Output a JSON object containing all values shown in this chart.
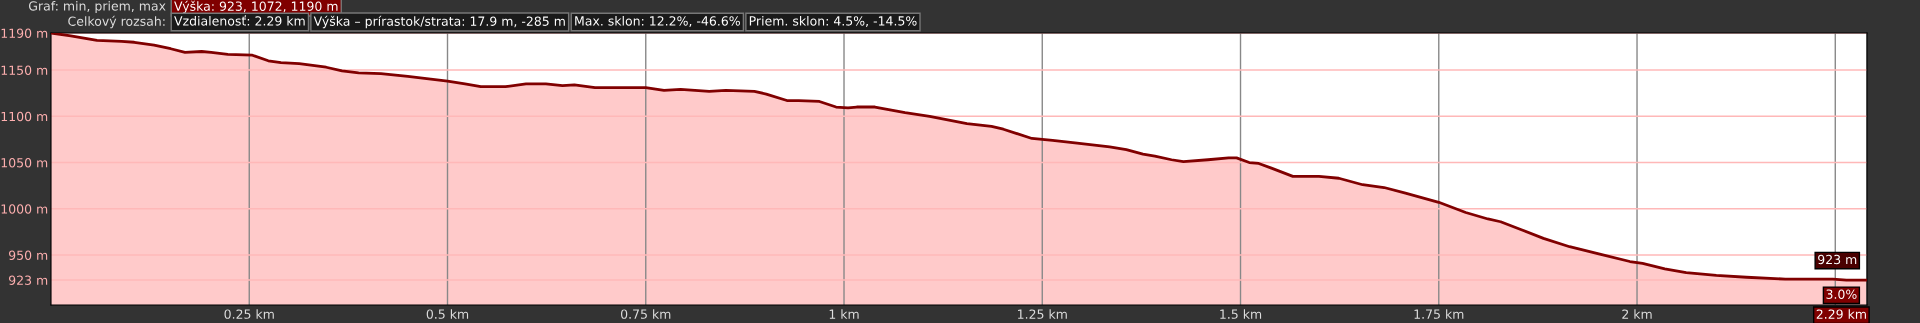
{
  "chart_data": {
    "type": "area",
    "title": "Graf: min, priem, max",
    "subtitle": "Celkový rozsah:",
    "annotations": [
      "Výška: 923, 1072, 1190 m",
      "Vzdialenosť: 2.29 km",
      "Výška – prírastok/strata: 17.9 m, -285 m",
      "Max. sklon: 12.2%, -46.6%",
      "Priem. sklon: 4.5%, -14.5%",
      {
        "text": "923 m",
        "x": 2.29,
        "y": 923
      },
      {
        "text": "3.0%",
        "x": 2.29,
        "y": 923
      }
    ],
    "series": [
      {
        "color": "#800000",
        "x": [
          0,
          0.025,
          0.058,
          0.089,
          0.105,
          0.13,
          0.151,
          0.169,
          0.19,
          0.202,
          0.223,
          0.254,
          0.274,
          0.29,
          0.313,
          0.347,
          0.367,
          0.388,
          0.416,
          0.45,
          0.5,
          0.522,
          0.542,
          0.573,
          0.599,
          0.624,
          0.645,
          0.66,
          0.686,
          0.728,
          0.75,
          0.773,
          0.794,
          0.83,
          0.851,
          0.887,
          0.902,
          0.928,
          0.943,
          0.969,
          0.99,
          1.005,
          1.016,
          1.039,
          1.077,
          1.108,
          1.155,
          1.186,
          1.201,
          1.237,
          1.263,
          1.294,
          1.335,
          1.356,
          1.377,
          1.392,
          1.413,
          1.428,
          1.459,
          1.485,
          1.495,
          1.511,
          1.523,
          1.539,
          1.566,
          1.599,
          1.624,
          1.654,
          1.681,
          1.708,
          1.75,
          1.784,
          1.812,
          1.828,
          1.855,
          1.882,
          1.915,
          1.953,
          1.991,
          2.007,
          2.035,
          2.062,
          2.1,
          2.138,
          2.187,
          2.209,
          2.247,
          2.264,
          2.29
        ],
        "values": [
          1190,
          1187,
          1182,
          1181,
          1180,
          1177,
          1173,
          1169,
          1170,
          1169,
          1167,
          1166,
          1160,
          1158,
          1157,
          1153,
          1149,
          1147,
          1146,
          1143,
          1138,
          1135,
          1132,
          1132,
          1135,
          1135,
          1133,
          1134,
          1131,
          1131,
          1131,
          1128,
          1129,
          1127,
          1128,
          1127,
          1124,
          1117,
          1117,
          1116,
          1110,
          1109,
          1110,
          1110,
          1104,
          1100,
          1092,
          1089,
          1086,
          1076,
          1074,
          1071,
          1067,
          1064,
          1059,
          1057,
          1053,
          1051,
          1053,
          1055,
          1055,
          1050,
          1049,
          1044,
          1035,
          1035,
          1033,
          1026,
          1023,
          1017,
          1007,
          996,
          989,
          986,
          977,
          968,
          959,
          951,
          943,
          941,
          935,
          931,
          928,
          926,
          924,
          924,
          924,
          923,
          923
        ]
      }
    ],
    "xlim": [
      0,
      2.29
    ],
    "xticks": [
      {
        "value": 0.25,
        "label": "0.25 km"
      },
      {
        "value": 0.5,
        "label": "0.5 km"
      },
      {
        "value": 0.75,
        "label": "0.75 km"
      },
      {
        "value": 1,
        "label": "1 km"
      },
      {
        "value": 1.25,
        "label": "1.25 km"
      },
      {
        "value": 1.5,
        "label": "1.5 km"
      },
      {
        "value": 1.75,
        "label": "1.75 km"
      },
      {
        "value": 2,
        "label": "2 km"
      },
      {
        "value": 2.25,
        "label": null
      },
      {
        "value": 2.29,
        "label": "2.29 km"
      }
    ],
    "ylim": [
      896,
      1190
    ],
    "yticks": [
      {
        "value": 923,
        "label": "923 m"
      },
      {
        "value": 950,
        "label": "950 m"
      },
      {
        "value": 1000,
        "label": "1000 m"
      },
      {
        "value": 1050,
        "label": "1050 m"
      },
      {
        "value": 1100,
        "label": "1100 m"
      },
      {
        "value": 1150,
        "label": "1150 m"
      },
      {
        "value": 1190,
        "label": "1190 m"
      }
    ],
    "grid": true
  }
}
